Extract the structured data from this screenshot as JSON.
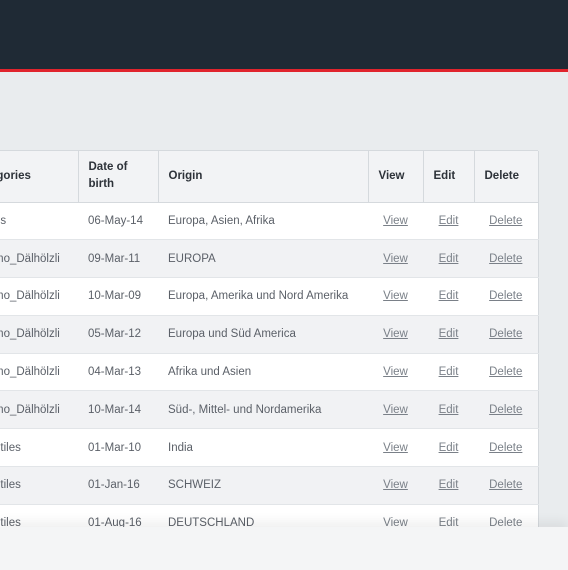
{
  "table": {
    "headers": {
      "categories": "egories",
      "dob": "Date of birth",
      "origin": "Origin",
      "view": "View",
      "edit": "Edit",
      "delete": "Delete"
    },
    "rows": [
      {
        "category": "ds",
        "dob": "06-May-14",
        "origin": "Europa, Asien, Afrika",
        "view": "View",
        "edit": "Edit",
        "delete": "Delete"
      },
      {
        "category": "mo_Dälhölzli",
        "dob": "09-Mar-11",
        "origin": "EUROPA",
        "view": "View",
        "edit": "Edit",
        "delete": "Delete"
      },
      {
        "category": "mo_Dälhölzli",
        "dob": "10-Mar-09",
        "origin": "Europa, Amerika und Nord Amerika",
        "view": "View",
        "edit": "Edit",
        "delete": "Delete"
      },
      {
        "category": "mo_Dälhölzli",
        "dob": "05-Mar-12",
        "origin": "Europa und Süd America",
        "view": "View",
        "edit": "Edit",
        "delete": "Delete"
      },
      {
        "category": "mo_Dälhölzli",
        "dob": "04-Mar-13",
        "origin": "Afrika und Asien",
        "view": "View",
        "edit": "Edit",
        "delete": "Delete"
      },
      {
        "category": "mo_Dälhölzli",
        "dob": "10-Mar-14",
        "origin": "Süd-, Mittel- und Nordamerika",
        "view": "View",
        "edit": "Edit",
        "delete": "Delete"
      },
      {
        "category": "otiles",
        "dob": "01-Mar-10",
        "origin": "India",
        "view": "View",
        "edit": "Edit",
        "delete": "Delete"
      },
      {
        "category": "otiles",
        "dob": "01-Jan-16",
        "origin": "SCHWEIZ",
        "view": "View",
        "edit": "Edit",
        "delete": "Delete"
      },
      {
        "category": "otiles",
        "dob": "01-Aug-16",
        "origin": "DEUTSCHLAND",
        "view": "View",
        "edit": "Edit",
        "delete": "Delete"
      }
    ]
  }
}
